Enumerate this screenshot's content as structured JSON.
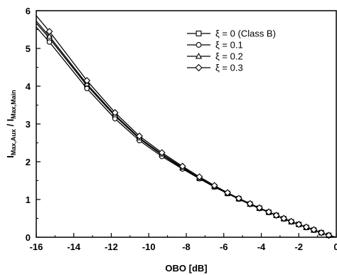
{
  "chart_data": {
    "type": "line",
    "xlabel": "OBO [dB]",
    "ylabel_main": "I",
    "ylabel_sub1": "Max,Aux",
    "ylabel_mid": " / I",
    "ylabel_sub2": "Max,Main",
    "xlim": [
      -16,
      0
    ],
    "ylim": [
      0,
      6
    ],
    "xticks": [
      -16,
      -14,
      -12,
      -10,
      -8,
      -6,
      -4,
      -2,
      0
    ],
    "yticks": [
      0,
      1,
      2,
      3,
      4,
      5,
      6
    ],
    "xtick_labels": [
      "-16",
      "-14",
      "-12",
      "-10",
      "-8",
      "-6",
      "-4",
      "-2",
      "0"
    ],
    "ytick_labels": [
      "0",
      "1",
      "2",
      "3",
      "4",
      "5",
      "6"
    ],
    "legend_position": "top-right",
    "series": [
      {
        "name": "ξ = 0 (Class B)",
        "marker": "square",
        "x": [
          -15.3,
          -13.3,
          -11.8,
          -10.5,
          -9.3,
          -8.2,
          -7.3,
          -6.5,
          -5.8,
          -5.2,
          -4.6,
          -4.1,
          -3.6,
          -3.2,
          -2.8,
          -2.4,
          -2.0,
          -1.6,
          -1.2,
          -0.8,
          -0.4
        ],
        "y": [
          5.27,
          4.02,
          3.21,
          2.61,
          2.18,
          1.83,
          1.56,
          1.34,
          1.16,
          1.02,
          0.88,
          0.77,
          0.66,
          0.58,
          0.49,
          0.41,
          0.34,
          0.26,
          0.19,
          0.12,
          0.05
        ]
      },
      {
        "name": "ξ = 0.1",
        "marker": "circle",
        "x": [
          -15.3,
          -13.3,
          -11.8,
          -10.5,
          -9.3,
          -8.2,
          -7.3,
          -6.5,
          -5.8,
          -5.2,
          -4.6,
          -4.1,
          -3.6,
          -3.2,
          -2.8,
          -2.4,
          -2.0,
          -1.6,
          -1.2,
          -0.8,
          -0.4
        ],
        "y": [
          5.17,
          3.94,
          3.14,
          2.56,
          2.14,
          1.81,
          1.55,
          1.33,
          1.16,
          1.01,
          0.87,
          0.76,
          0.66,
          0.58,
          0.49,
          0.41,
          0.34,
          0.26,
          0.19,
          0.12,
          0.05
        ]
      },
      {
        "name": "ξ = 0.2",
        "marker": "triangle",
        "x": [
          -15.3,
          -13.3,
          -11.8,
          -10.5,
          -9.3,
          -8.2,
          -7.3,
          -6.5,
          -5.8,
          -5.2,
          -4.6,
          -4.1,
          -3.6,
          -3.2,
          -2.8,
          -2.4,
          -2.0,
          -1.6,
          -1.2,
          -0.8,
          -0.4
        ],
        "y": [
          5.32,
          4.06,
          3.24,
          2.63,
          2.2,
          1.85,
          1.57,
          1.35,
          1.17,
          1.02,
          0.88,
          0.77,
          0.67,
          0.58,
          0.49,
          0.41,
          0.34,
          0.26,
          0.19,
          0.12,
          0.05
        ]
      },
      {
        "name": "ξ = 0.3",
        "marker": "diamond",
        "x": [
          -15.3,
          -13.3,
          -11.8,
          -10.5,
          -9.3,
          -8.2,
          -7.3,
          -6.5,
          -5.8,
          -5.2,
          -4.6,
          -4.1,
          -3.6,
          -3.2,
          -2.8,
          -2.4,
          -2.0,
          -1.6,
          -1.2,
          -0.8,
          -0.4
        ],
        "y": [
          5.45,
          4.15,
          3.3,
          2.68,
          2.24,
          1.88,
          1.6,
          1.37,
          1.18,
          1.03,
          0.89,
          0.78,
          0.67,
          0.58,
          0.5,
          0.42,
          0.34,
          0.27,
          0.2,
          0.12,
          0.05
        ]
      }
    ]
  }
}
